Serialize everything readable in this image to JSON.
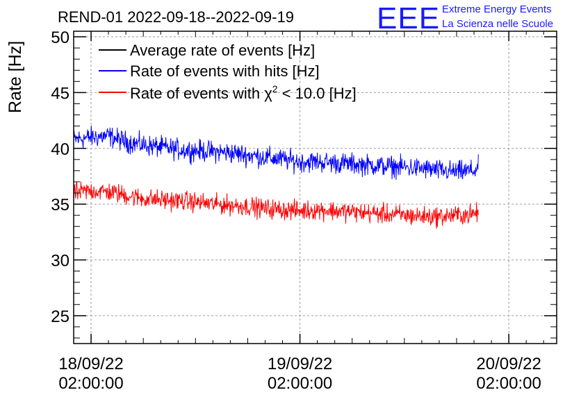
{
  "chart_data": {
    "type": "line",
    "title": "REND-01 2022-09-18--2022-09-19",
    "xlabel": "",
    "ylabel": "Rate [Hz]",
    "ylim": [
      22.5,
      50.5
    ],
    "yticks": [
      25,
      30,
      35,
      40,
      45,
      50
    ],
    "xlim_hours": [
      -2.0,
      53.5
    ],
    "xticks": [
      {
        "hours": 0,
        "date": "18/09/22",
        "time": "02:00:00"
      },
      {
        "hours": 24,
        "date": "19/09/22",
        "time": "02:00:00"
      },
      {
        "hours": 48,
        "date": "20/09/22",
        "time": "02:00:00"
      }
    ],
    "grid": true,
    "legend_position": "top-left",
    "legend": [
      {
        "label_main": "Average rate of events [Hz]",
        "color": "#000000"
      },
      {
        "label_main": "Rate of events with hits [Hz]",
        "color": "#0000ff"
      },
      {
        "label_prefix": "Rate of events with ",
        "chi_symbol": "χ",
        "chi_sup": "2",
        "label_suffix": " < 10.0 [Hz]",
        "color": "#ff0000"
      }
    ],
    "series": [
      {
        "name": "Rate of events with hits",
        "color": "#0000ff",
        "x_hours": [
          -2,
          0,
          2,
          4,
          6,
          8,
          10,
          12,
          14,
          16,
          18,
          20,
          22,
          24,
          26,
          28,
          30,
          32,
          34,
          36,
          38,
          40,
          42,
          44,
          44.5
        ],
        "values": [
          40.8,
          41.0,
          41.1,
          40.6,
          40.3,
          40.1,
          39.9,
          39.8,
          39.7,
          39.6,
          39.4,
          39.2,
          39.0,
          38.8,
          38.8,
          38.7,
          38.6,
          38.5,
          38.4,
          38.3,
          38.2,
          38.0,
          37.9,
          38.0,
          38.3
        ],
        "noise_amplitude": 1.4
      },
      {
        "name": "Rate of events with chi2 < 10.0",
        "color": "#ff0000",
        "x_hours": [
          -2,
          0,
          2,
          4,
          6,
          8,
          10,
          12,
          14,
          16,
          18,
          20,
          22,
          24,
          26,
          28,
          30,
          32,
          34,
          36,
          38,
          40,
          42,
          44,
          44.5
        ],
        "values": [
          36.0,
          36.2,
          36.1,
          35.8,
          35.5,
          35.4,
          35.3,
          35.2,
          35.0,
          34.9,
          34.8,
          34.6,
          34.5,
          34.4,
          34.5,
          34.4,
          34.3,
          34.2,
          34.1,
          34.0,
          33.9,
          33.9,
          34.0,
          34.1,
          34.3
        ],
        "noise_amplitude": 1.3
      }
    ]
  },
  "logo": {
    "letters": "EEE",
    "line1": "Extreme Energy Events",
    "line2": "La Scienza nelle Scuole",
    "color": "#1a1aff"
  }
}
